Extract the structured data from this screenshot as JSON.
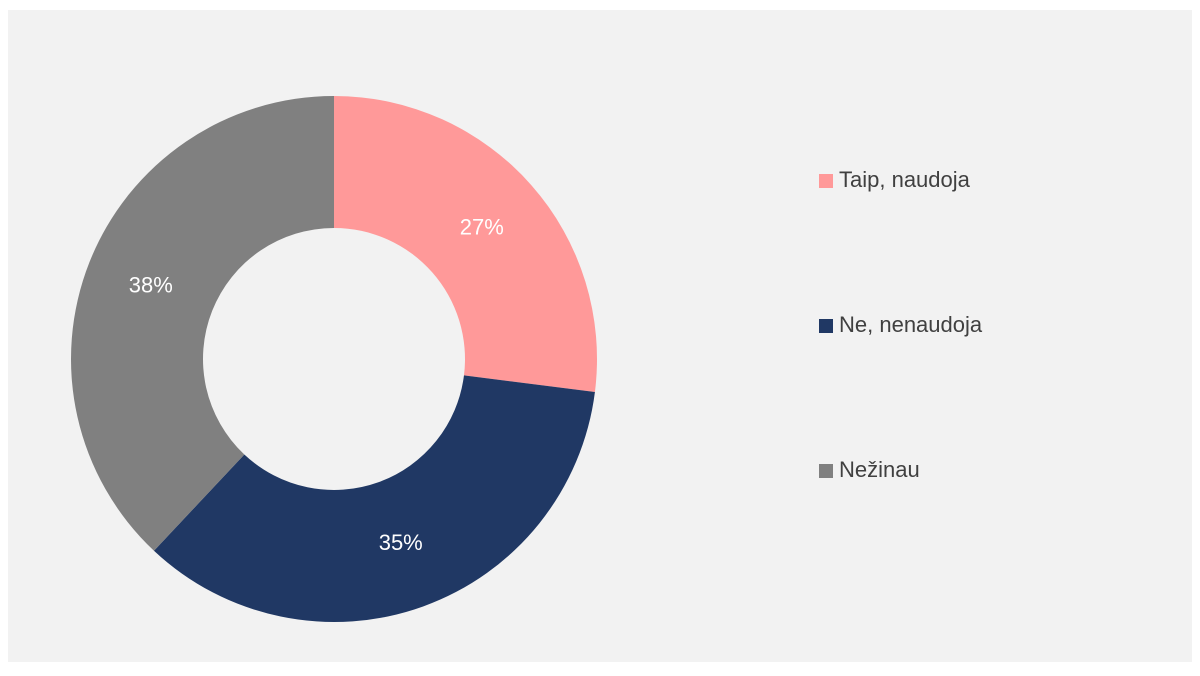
{
  "chart_data": {
    "type": "donut",
    "categories": [
      "Taip, naudoja",
      "Ne, nenaudoja",
      "Nežinau"
    ],
    "values": [
      27,
      35,
      38
    ],
    "value_labels": [
      "27%",
      "35%",
      "38%"
    ],
    "colors": [
      "#FF9999",
      "#203864",
      "#808080"
    ],
    "legend": "right"
  }
}
